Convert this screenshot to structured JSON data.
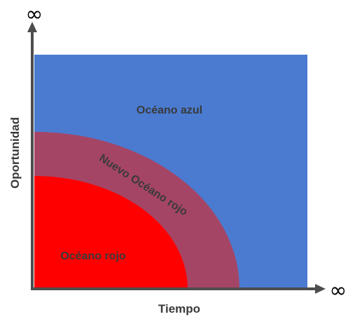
{
  "axes": {
    "x_label": "Tiempo",
    "y_label": "Oportunidad",
    "x_end_symbol": "∞",
    "y_end_symbol": "∞"
  },
  "regions": {
    "blue_ocean": {
      "label": "Océano azul",
      "color": "#4a7bd0"
    },
    "new_red_ocean": {
      "label": "Nuevo Océano rojo",
      "color": "#a54566"
    },
    "red_ocean": {
      "label": "Océano rojo",
      "color": "#ff0000"
    }
  },
  "label_color": "#3a3a3a",
  "axis_color": "#4d4d4d"
}
